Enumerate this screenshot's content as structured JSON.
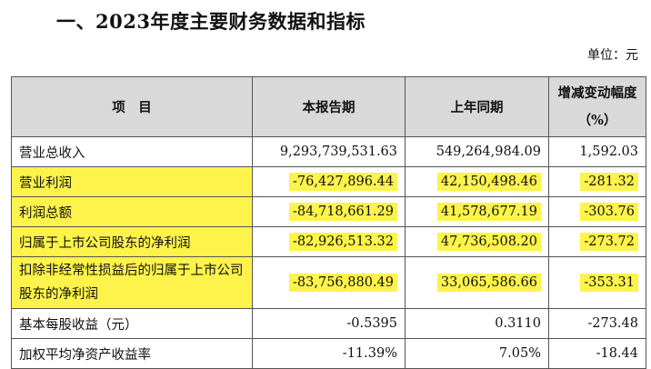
{
  "title": "一、2023年度主要财务数据和指标",
  "unit": "单位：元",
  "headers": [
    "项　目",
    "本报告期",
    "上年同期",
    "增减变动幅度（%）"
  ],
  "rows": [
    {
      "label": "营业总收入",
      "current": "9,293,739,531.63",
      "prior": "549,264,984.09",
      "change": "1,592.03",
      "highlight": false
    },
    {
      "label": "营业利润",
      "current": "-76,427,896.44",
      "prior": "42,150,498.46",
      "change": "-281.32",
      "highlight": true
    },
    {
      "label": "利润总额",
      "current": "-84,718,661.29",
      "prior": "41,578,677.19",
      "change": "-303.76",
      "highlight": true
    },
    {
      "label": "归属于上市公司股东的净利润",
      "current": "-82,926,513.32",
      "prior": "47,736,508.20",
      "change": "-273.72",
      "highlight": true
    },
    {
      "label": "扣除非经常性损益后的归属于上市公司股东的净利润",
      "current": "-83,756,880.49",
      "prior": "33,065,586.66",
      "change": "-353.31",
      "highlight": true
    },
    {
      "label": "基本每股收益（元）",
      "current": "-0.5395",
      "prior": "0.3110",
      "change": "-273.48",
      "highlight": false
    },
    {
      "label": "加权平均净资产收益率",
      "current": "-11.39%",
      "prior": "7.05%",
      "change": "-18.44",
      "highlight": false
    }
  ],
  "colors": {
    "highlight": "#fdf34a",
    "header_bg": "#d9d9d9"
  }
}
